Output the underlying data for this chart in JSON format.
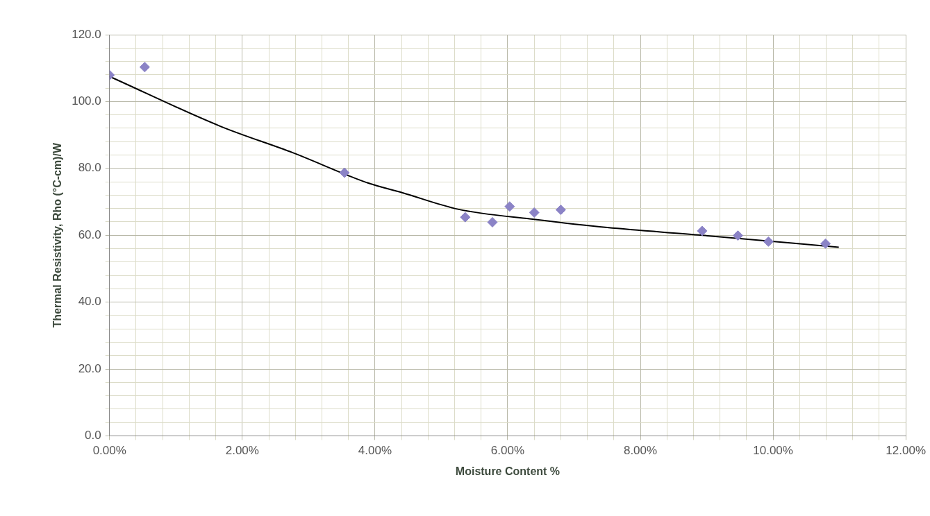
{
  "chart_data": {
    "type": "scatter",
    "xlabel": "Moisture Content %",
    "ylabel": "Thermal Resistivity, Rho (°C-cm)/W",
    "series": [
      {
        "color": "#8b83c6",
        "marker": "diamond",
        "x": [
          0,
          0.53,
          3.54,
          5.36,
          5.77,
          6.03,
          6.4,
          6.8,
          8.93,
          9.47,
          9.93,
          10.79
        ],
        "values": [
          107.9,
          110.3,
          78.7,
          65.4,
          63.9,
          68.6,
          66.8,
          67.6,
          61.3,
          59.9,
          58.1,
          57.5
        ]
      },
      {
        "type": "line",
        "color": "#000000",
        "marker": "none",
        "x": [
          0,
          1.67,
          2.76,
          3.9,
          4.4,
          5.25,
          6.42,
          7.5,
          8.87,
          10.99
        ],
        "values": [
          107.5,
          92.6,
          84.7,
          75.6,
          72.8,
          67.8,
          64.7,
          62.3,
          60.1,
          56.4
        ]
      }
    ],
    "xlim": [
      0,
      12
    ],
    "xticks": [
      {
        "value": 0,
        "label": "0.00%"
      },
      {
        "value": 0.4,
        "label": null
      },
      {
        "value": 0.8,
        "label": null
      },
      {
        "value": 1.2,
        "label": null
      },
      {
        "value": 1.6,
        "label": null
      },
      {
        "value": 2,
        "label": "2.00%"
      },
      {
        "value": 2.4,
        "label": null
      },
      {
        "value": 2.8,
        "label": null
      },
      {
        "value": 3.2,
        "label": null
      },
      {
        "value": 3.6,
        "label": null
      },
      {
        "value": 4,
        "label": "4.00%"
      },
      {
        "value": 4.4,
        "label": null
      },
      {
        "value": 4.8,
        "label": null
      },
      {
        "value": 5.2,
        "label": null
      },
      {
        "value": 5.6,
        "label": null
      },
      {
        "value": 6,
        "label": "6.00%"
      },
      {
        "value": 6.4,
        "label": null
      },
      {
        "value": 6.8,
        "label": null
      },
      {
        "value": 7.2,
        "label": null
      },
      {
        "value": 7.6,
        "label": null
      },
      {
        "value": 8,
        "label": "8.00%"
      },
      {
        "value": 8.4,
        "label": null
      },
      {
        "value": 8.8,
        "label": null
      },
      {
        "value": 9.2,
        "label": null
      },
      {
        "value": 9.6,
        "label": null
      },
      {
        "value": 10,
        "label": "10.00%"
      },
      {
        "value": 10.4,
        "label": null
      },
      {
        "value": 10.8,
        "label": null
      },
      {
        "value": 11.2,
        "label": null
      },
      {
        "value": 11.6,
        "label": null
      },
      {
        "value": 12,
        "label": "12.00%"
      }
    ],
    "ylim": [
      0,
      120
    ],
    "yticks": [
      {
        "value": 0,
        "label": "0.0"
      },
      {
        "value": 4,
        "label": null
      },
      {
        "value": 8,
        "label": null
      },
      {
        "value": 12,
        "label": null
      },
      {
        "value": 16,
        "label": null
      },
      {
        "value": 20,
        "label": "20.0"
      },
      {
        "value": 24,
        "label": null
      },
      {
        "value": 28,
        "label": null
      },
      {
        "value": 32,
        "label": null
      },
      {
        "value": 36,
        "label": null
      },
      {
        "value": 40,
        "label": "40.0"
      },
      {
        "value": 44,
        "label": null
      },
      {
        "value": 48,
        "label": null
      },
      {
        "value": 52,
        "label": null
      },
      {
        "value": 56,
        "label": null
      },
      {
        "value": 60,
        "label": "60.0"
      },
      {
        "value": 64,
        "label": null
      },
      {
        "value": 68,
        "label": null
      },
      {
        "value": 72,
        "label": null
      },
      {
        "value": 76,
        "label": null
      },
      {
        "value": 80,
        "label": "80.0"
      },
      {
        "value": 84,
        "label": null
      },
      {
        "value": 88,
        "label": null
      },
      {
        "value": 92,
        "label": null
      },
      {
        "value": 96,
        "label": null
      },
      {
        "value": 100,
        "label": "100.0"
      },
      {
        "value": 104,
        "label": null
      },
      {
        "value": 108,
        "label": null
      },
      {
        "value": 112,
        "label": null
      },
      {
        "value": 116,
        "label": null
      },
      {
        "value": 120,
        "label": "120.0"
      }
    ],
    "grid": true,
    "legend": false
  }
}
